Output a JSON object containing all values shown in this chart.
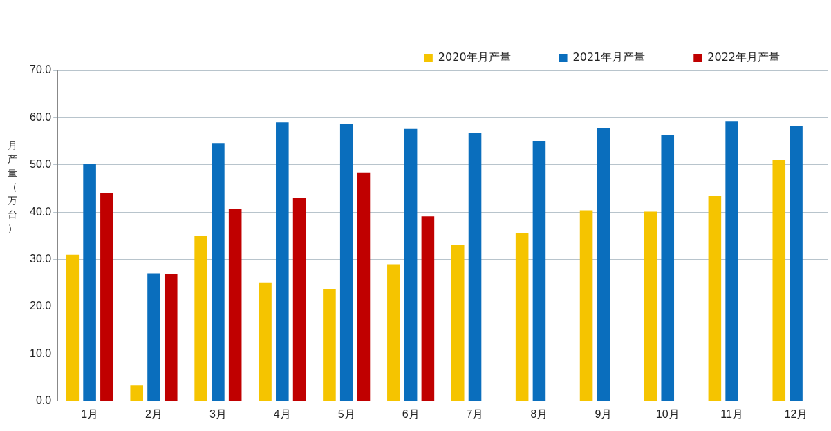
{
  "chart_data": {
    "type": "bar",
    "ylabel": "月产量（万台）",
    "categories": [
      "1月",
      "2月",
      "3月",
      "4月",
      "5月",
      "6月",
      "7月",
      "8月",
      "9月",
      "10月",
      "11月",
      "12月"
    ],
    "series": [
      {
        "name": "2020年月产量",
        "color": "#f5c400",
        "values": [
          31.0,
          3.3,
          35.0,
          25.0,
          23.8,
          29.0,
          33.0,
          35.6,
          40.4,
          40.1,
          43.4,
          51.1
        ]
      },
      {
        "name": "2021年月产量",
        "color": "#0a6ebd",
        "values": [
          50.1,
          27.1,
          54.6,
          59.0,
          58.6,
          57.6,
          56.8,
          55.1,
          57.8,
          56.3,
          59.3,
          58.2
        ]
      },
      {
        "name": "2022年月产量",
        "color": "#c00000",
        "values": [
          44.0,
          27.0,
          40.7,
          43.0,
          48.4,
          39.1,
          null,
          null,
          null,
          null,
          null,
          null
        ]
      }
    ],
    "ylim": [
      0,
      70
    ],
    "yticks": [
      {
        "value": 0,
        "label": "0.0"
      },
      {
        "value": 10,
        "label": "10.0"
      },
      {
        "value": 20,
        "label": "20.0"
      },
      {
        "value": 30,
        "label": "30.0"
      },
      {
        "value": 40,
        "label": "40.0"
      },
      {
        "value": 50,
        "label": "50.0"
      },
      {
        "value": 60,
        "label": "60.0"
      },
      {
        "value": 70,
        "label": "70.0"
      }
    ],
    "grid": "y",
    "legend": "top right"
  }
}
